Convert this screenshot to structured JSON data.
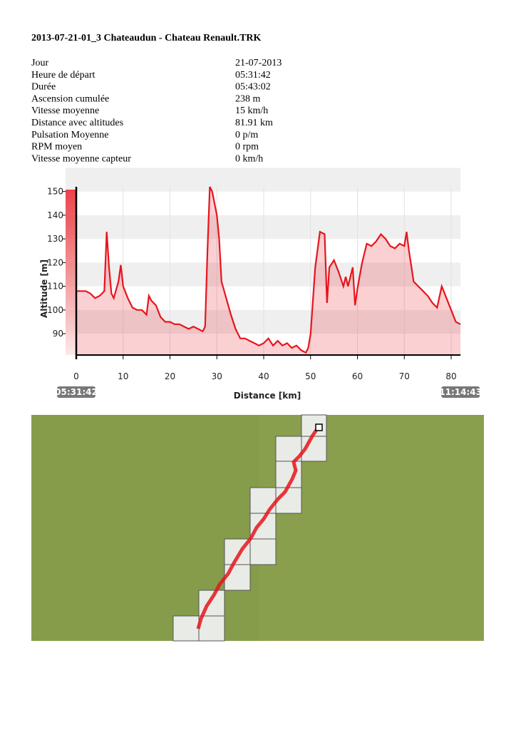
{
  "title": "2013-07-21-01_3 Chateaudun - Chateau Renault.TRK",
  "stats": [
    {
      "label": "Jour",
      "value": "21-07-2013"
    },
    {
      "label": "Heure de départ",
      "value": "05:31:42"
    },
    {
      "label": "Durée",
      "value": "05:43:02"
    },
    {
      "label": "Ascension cumulée",
      "value": "238 m"
    },
    {
      "label": "Vitesse moyenne",
      "value": "15 km/h"
    },
    {
      "label": "Distance avec altitudes",
      "value": "81.91 km"
    },
    {
      "label": "Pulsation Moyenne",
      "value": "0 p/m"
    },
    {
      "label": "RPM moyen",
      "value": "0 rpm"
    },
    {
      "label": "Vitesse moyenne capteur",
      "value": "0 km/h"
    }
  ],
  "chart_data": {
    "type": "area",
    "x_label": "Distance [km]",
    "y_label": "Altitude [m]",
    "start_time": "05:31:42",
    "end_time": "11:14:43",
    "xlim": [
      0,
      82
    ],
    "ylim": [
      81,
      152
    ],
    "xticks": [
      0,
      10,
      20,
      30,
      40,
      50,
      60,
      70,
      80
    ],
    "yticks": [
      90,
      100,
      110,
      120,
      130,
      140,
      150
    ],
    "grid": true,
    "color": "#e8141c",
    "x": [
      0,
      2,
      3,
      4,
      5,
      6,
      6.5,
      7,
      7.5,
      8,
      9,
      9.5,
      10,
      11,
      12,
      13,
      14,
      15,
      15.5,
      16,
      17,
      18,
      19,
      20,
      21,
      22,
      23,
      24,
      25,
      26,
      27,
      27.5,
      28,
      28.5,
      29,
      30,
      30.5,
      31,
      32,
      33,
      34,
      35,
      36,
      37,
      38,
      39,
      40,
      41,
      42,
      43,
      44,
      45,
      46,
      47,
      48,
      49,
      49.5,
      50,
      51,
      52,
      53,
      53.5,
      54,
      55,
      56,
      57,
      57.5,
      58,
      59,
      59.5,
      60,
      61,
      62,
      63,
      64,
      65,
      66,
      67,
      68,
      69,
      70,
      70.5,
      71,
      72,
      73,
      74,
      75,
      76,
      77,
      78,
      79,
      80,
      81,
      82
    ],
    "values": [
      108,
      108,
      107,
      105,
      106,
      108,
      133,
      118,
      107,
      105,
      112,
      119,
      110,
      105,
      101,
      100,
      100,
      98,
      106,
      104,
      102,
      97,
      95,
      95,
      94,
      94,
      93,
      92,
      93,
      92,
      91,
      93,
      125,
      152,
      150,
      140,
      130,
      112,
      105,
      98,
      92,
      88,
      88,
      87,
      86,
      85,
      86,
      88,
      85,
      87,
      85,
      86,
      84,
      85,
      83,
      82,
      84,
      90,
      118,
      133,
      132,
      103,
      118,
      121,
      116,
      110,
      114,
      110,
      118,
      102,
      109,
      120,
      128,
      127,
      129,
      132,
      130,
      127,
      126,
      128,
      127,
      133,
      125,
      112,
      110,
      108,
      106,
      103,
      101,
      110,
      105,
      100,
      95,
      94
    ]
  }
}
